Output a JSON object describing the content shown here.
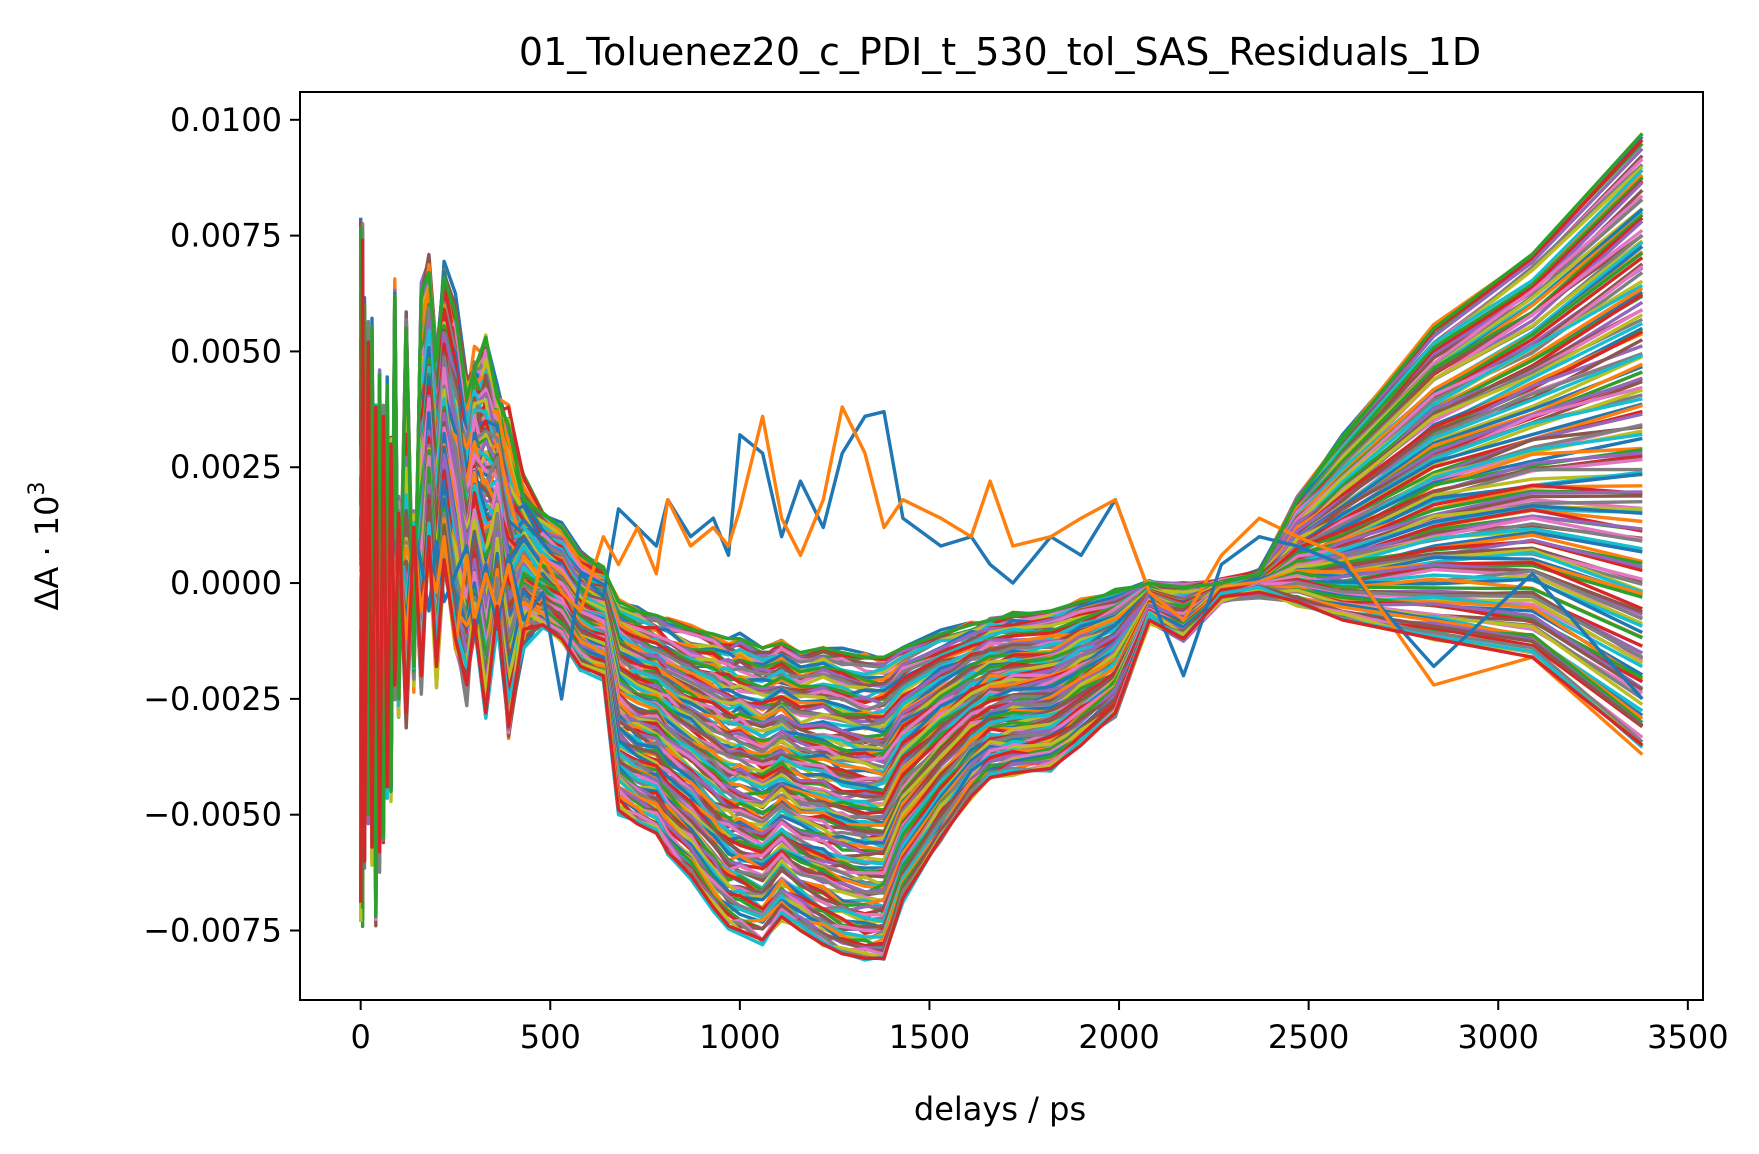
{
  "chart_data": {
    "type": "line",
    "title": "01_Toluenez20_c_PDI_t_530_tol_SAS_Residuals_1D",
    "xlabel": "delays / ps",
    "ylabel_main": "ΔA · 10",
    "ylabel_sup": "3",
    "xlim": [
      -160,
      3540
    ],
    "ylim": [
      -0.009,
      0.0106
    ],
    "xticks": [
      0,
      500,
      1000,
      1500,
      2000,
      2500,
      3000,
      3500
    ],
    "xtick_labels": [
      "0",
      "500",
      "1000",
      "1500",
      "2000",
      "2500",
      "3000",
      "3500"
    ],
    "yticks": [
      -0.0075,
      -0.005,
      -0.0025,
      0.0,
      0.0025,
      0.005,
      0.0075,
      0.01
    ],
    "ytick_labels": [
      "−0.0075",
      "−0.0050",
      "−0.0025",
      "0.0000",
      "0.0025",
      "0.0050",
      "0.0075",
      "0.0100"
    ],
    "grid": false,
    "legend": "none",
    "colors": [
      "#1f77b4",
      "#ff7f0e",
      "#2ca02c",
      "#d62728",
      "#9467bd",
      "#8c564b",
      "#e377c2",
      "#7f7f7f",
      "#bcbd22",
      "#17becf"
    ],
    "x": [
      0,
      5,
      10,
      20,
      30,
      40,
      50,
      60,
      70,
      80,
      90,
      100,
      120,
      140,
      160,
      180,
      200,
      220,
      250,
      280,
      300,
      330,
      360,
      390,
      430,
      480,
      530,
      580,
      640,
      680,
      730,
      780,
      810,
      870,
      930,
      970,
      1000,
      1060,
      1110,
      1160,
      1220,
      1270,
      1330,
      1380,
      1430,
      1530,
      1610,
      1660,
      1720,
      1820,
      1900,
      1990,
      2080,
      2170,
      2270,
      2370,
      2470,
      2590,
      2830,
      3090,
      3380
    ],
    "series_count": 160,
    "series_note_visible": false,
    "series": [
      {
        "y": [
          0.0077,
          -0.007,
          0.006,
          -0.005,
          0.0055,
          -0.0072,
          0.0045,
          -0.0055,
          0.0042,
          -0.0045,
          0.0062,
          -0.0025,
          0.0055,
          -0.0018,
          0.0063,
          0.0067,
          0.0048,
          0.0066,
          0.0058,
          0.004,
          0.0046,
          0.0053,
          0.004,
          0.0034,
          0.0018,
          0.0015,
          0.0012,
          0.0006,
          0.0003,
          -0.0004,
          -0.0006,
          -0.0007,
          -0.0008,
          -0.001,
          -0.0011,
          -0.0012,
          -0.0012,
          -0.0014,
          -0.0013,
          -0.0015,
          -0.0014,
          -0.0015,
          -0.0016,
          -0.0016,
          -0.0014,
          -0.0011,
          -0.0009,
          -0.0008,
          -0.0007,
          -0.0006,
          -0.0004,
          -0.0002,
          0.0,
          -0.0001,
          0.0,
          0.0002,
          0.0018,
          0.0031,
          0.0055,
          0.0071,
          0.0097
        ]
      },
      {
        "y": [
          -0.0069,
          0.0074,
          -0.006,
          0.0052,
          -0.0057,
          0.0038,
          -0.0058,
          0.0036,
          -0.0044,
          0.003,
          -0.0022,
          0.0015,
          -0.0028,
          0.0012,
          -0.002,
          0.001,
          -0.0018,
          0.0005,
          -0.0012,
          -0.0022,
          -0.0008,
          -0.0028,
          -0.0005,
          -0.0031,
          -0.001,
          -0.0009,
          -0.0012,
          -0.0018,
          -0.002,
          -0.0049,
          -0.0052,
          -0.0054,
          -0.0058,
          -0.0063,
          -0.007,
          -0.0074,
          -0.0075,
          -0.0077,
          -0.0072,
          -0.0075,
          -0.0078,
          -0.008,
          -0.0081,
          -0.0081,
          -0.0068,
          -0.0055,
          -0.0046,
          -0.0042,
          -0.0041,
          -0.004,
          -0.0035,
          -0.0028,
          -0.0008,
          -0.0012,
          -0.0003,
          -0.0002,
          -0.0004,
          -0.0008,
          -0.0012,
          -0.0016,
          -0.0035
        ]
      },
      {
        "y": [
          0.002,
          0.001,
          -0.001,
          0.0032,
          -0.003,
          0.0024,
          -0.0026,
          0.0018,
          -0.0016,
          0.0012,
          0.0008,
          0.0005,
          -0.001,
          0.0012,
          0.0004,
          -0.0006,
          0.0009,
          -0.0004,
          0.0002,
          0.0008,
          -0.0012,
          0.0004,
          -0.001,
          0.0006,
          -0.0008,
          -0.0002,
          -0.0025,
          0.0002,
          -0.0003,
          0.0016,
          0.0012,
          0.0008,
          0.0018,
          0.001,
          0.0014,
          0.0006,
          0.0032,
          0.0028,
          0.001,
          0.0022,
          0.0012,
          0.0028,
          0.0036,
          0.0037,
          0.0014,
          0.0008,
          0.001,
          0.0004,
          0.0,
          0.001,
          0.0006,
          0.0018,
          -0.0002,
          -0.002,
          0.0004,
          0.001,
          0.0008,
          0.0004,
          -0.0018,
          0.0002,
          -0.0025
        ]
      },
      {
        "y": [
          -0.001,
          0.003,
          -0.002,
          0.0025,
          -0.0018,
          0.0012,
          -0.0015,
          0.001,
          -0.0012,
          0.0014,
          -0.0004,
          0.0006,
          -0.0012,
          0.0008,
          -0.0006,
          0.0004,
          -0.0002,
          0.001,
          -0.0014,
          0.0006,
          -0.0008,
          0.0002,
          -0.0006,
          0.0004,
          -0.0012,
          0.0006,
          -0.0002,
          -0.0006,
          0.001,
          0.0004,
          0.0012,
          0.0002,
          0.0018,
          0.0008,
          0.0012,
          0.0008,
          0.0016,
          0.0036,
          0.0014,
          0.0006,
          0.0018,
          0.0038,
          0.0028,
          0.0012,
          0.0018,
          0.0014,
          0.001,
          0.0022,
          0.0008,
          0.001,
          0.0014,
          0.0018,
          -0.0002,
          -0.0008,
          0.0006,
          0.0014,
          0.001,
          0.0006,
          -0.0022,
          -0.0016,
          -0.0037
        ]
      }
    ]
  }
}
